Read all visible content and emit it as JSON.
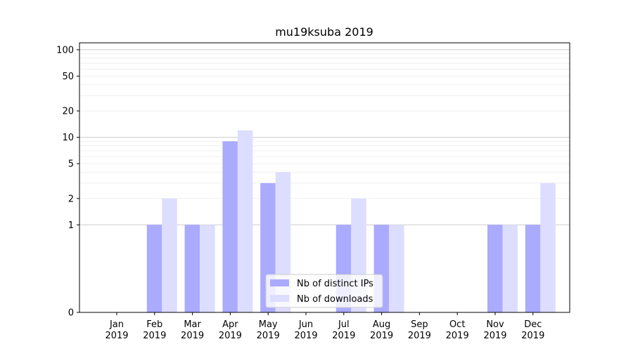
{
  "chart_data": {
    "type": "bar",
    "title": "mu19ksuba 2019",
    "xlabel": "",
    "ylabel": "",
    "y_scale": "symlog",
    "ylim": [
      0,
      120
    ],
    "y_ticks": [
      0,
      1,
      2,
      5,
      10,
      20,
      50,
      100
    ],
    "grid": "y",
    "legend_position": "bottom-center",
    "categories": [
      [
        "Jan",
        "2019"
      ],
      [
        "Feb",
        "2019"
      ],
      [
        "Mar",
        "2019"
      ],
      [
        "Apr",
        "2019"
      ],
      [
        "May",
        "2019"
      ],
      [
        "Jun",
        "2019"
      ],
      [
        "Jul",
        "2019"
      ],
      [
        "Aug",
        "2019"
      ],
      [
        "Sep",
        "2019"
      ],
      [
        "Oct",
        "2019"
      ],
      [
        "Nov",
        "2019"
      ],
      [
        "Dec",
        "2019"
      ]
    ],
    "series": [
      {
        "name": "Nb of distinct IPs",
        "color": "#aaaaff",
        "values": [
          0,
          1,
          1,
          9,
          3,
          0,
          1,
          1,
          0,
          0,
          1,
          1
        ]
      },
      {
        "name": "Nb of downloads",
        "color": "#ddddff",
        "values": [
          0,
          2,
          1,
          12,
          4,
          0,
          2,
          1,
          0,
          0,
          1,
          3
        ]
      }
    ]
  }
}
